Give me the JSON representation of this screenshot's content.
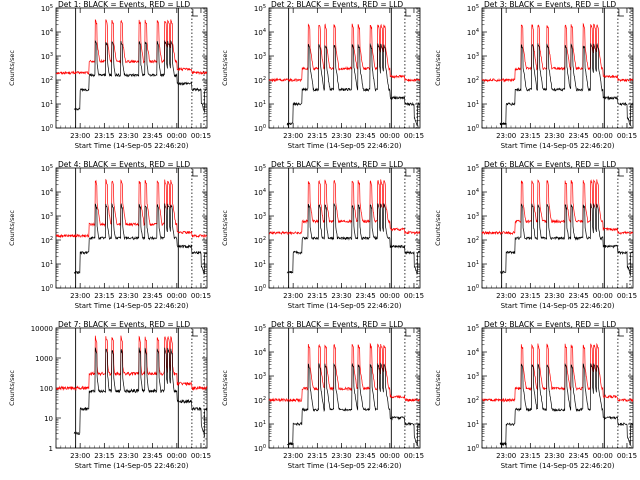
{
  "figure": {
    "xtick_labels": [
      "23:00",
      "23:15",
      "23:30",
      "23:45",
      "00:00",
      "00:15"
    ],
    "xlabel": "Start Time (14-Sep-05 22:46:20)",
    "ylabel": "Counts/sec",
    "colors": {
      "events": "#000000",
      "lld": "#ff0000",
      "axes": "#000000"
    }
  },
  "chart_data": [
    {
      "type": "line",
      "title": "Det 1: BLACK = Events, RED = LLD",
      "xlabel": "Start Time (14-Sep-05 22:46:20)",
      "ylabel": "Counts/sec",
      "yscale": "log",
      "ylim": [
        1,
        100000
      ],
      "ytick_labels": [
        "10^0",
        "10^1",
        "10^2",
        "10^3",
        "10^4",
        "10^5"
      ],
      "series": [
        {
          "name": "Events",
          "color": "#000000",
          "values_desc": "background ~40 counts/sec, spikes ~4000"
        },
        {
          "name": "LLD",
          "color": "#ff0000",
          "values_desc": "background ~200 counts/sec, spikes ~30000"
        }
      ]
    },
    {
      "type": "line",
      "title": "Det 2: BLACK = Events, RED = LLD",
      "xlabel": "Start Time (14-Sep-05 22:46:20)",
      "ylabel": "Counts/sec",
      "yscale": "log",
      "ylim": [
        1,
        100000
      ],
      "ytick_labels": [
        "10^0",
        "10^1",
        "10^2",
        "10^3",
        "10^4",
        "10^5"
      ],
      "series": [
        {
          "name": "Events",
          "color": "#000000",
          "values_desc": "background ~10 counts/sec, spikes ~3000"
        },
        {
          "name": "LLD",
          "color": "#ff0000",
          "values_desc": "background ~100 counts/sec, spikes ~20000"
        }
      ]
    },
    {
      "type": "line",
      "title": "Det 3: BLACK = Events, RED = LLD",
      "xlabel": "Start Time (14-Sep-05 22:46:20)",
      "ylabel": "Counts/sec",
      "yscale": "log",
      "ylim": [
        1,
        100000
      ],
      "ytick_labels": [
        "10^0",
        "10^1",
        "10^2",
        "10^3",
        "10^4",
        "10^5"
      ],
      "series": [
        {
          "name": "Events",
          "color": "#000000",
          "values_desc": "background ~10 counts/sec, spikes ~3000"
        },
        {
          "name": "LLD",
          "color": "#ff0000",
          "values_desc": "background ~100 counts/sec, spikes ~20000"
        }
      ]
    },
    {
      "type": "line",
      "title": "Det 4: BLACK = Events, RED = LLD",
      "xlabel": "Start Time (14-Sep-05 22:46:20)",
      "ylabel": "Counts/sec",
      "yscale": "log",
      "ylim": [
        1,
        100000
      ],
      "ytick_labels": [
        "10^0",
        "10^1",
        "10^2",
        "10^3",
        "10^4",
        "10^5"
      ],
      "series": [
        {
          "name": "Events",
          "color": "#000000",
          "values_desc": "background ~30 counts/sec, spikes ~3000"
        },
        {
          "name": "LLD",
          "color": "#ff0000",
          "values_desc": "background ~150 counts/sec, spikes ~30000"
        }
      ]
    },
    {
      "type": "line",
      "title": "Det 5: BLACK = Events, RED = LLD",
      "xlabel": "Start Time (14-Sep-05 22:46:20)",
      "ylabel": "Counts/sec",
      "yscale": "log",
      "ylim": [
        1,
        100000
      ],
      "ytick_labels": [
        "10^0",
        "10^1",
        "10^2",
        "10^3",
        "10^4",
        "10^5"
      ],
      "series": [
        {
          "name": "Events",
          "color": "#000000",
          "values_desc": "background ~30 counts/sec, spikes ~3000"
        },
        {
          "name": "LLD",
          "color": "#ff0000",
          "values_desc": "background ~200 counts/sec, spikes ~30000"
        }
      ]
    },
    {
      "type": "line",
      "title": "Det 6: BLACK = Events, RED = LLD",
      "xlabel": "Start Time (14-Sep-05 22:46:20)",
      "ylabel": "Counts/sec",
      "yscale": "log",
      "ylim": [
        1,
        100000
      ],
      "ytick_labels": [
        "10^0",
        "10^1",
        "10^2",
        "10^3",
        "10^4",
        "10^5"
      ],
      "series": [
        {
          "name": "Events",
          "color": "#000000",
          "values_desc": "background ~30 counts/sec, spikes ~3000"
        },
        {
          "name": "LLD",
          "color": "#ff0000",
          "values_desc": "background ~200 counts/sec, spikes ~30000"
        }
      ]
    },
    {
      "type": "line",
      "title": "Det 7: BLACK = Events, RED = LLD",
      "xlabel": "Start Time (14-Sep-05 22:46:20)",
      "ylabel": "Counts/sec",
      "yscale": "log",
      "ylim": [
        1,
        10000
      ],
      "ytick_labels": [
        "1",
        "10",
        "100",
        "1000",
        "10000"
      ],
      "series": [
        {
          "name": "Events",
          "color": "#000000",
          "values_desc": "background ~20 counts/sec, spikes ~2000"
        },
        {
          "name": "LLD",
          "color": "#ff0000",
          "values_desc": "background ~100 counts/sec, spikes ~5000"
        }
      ]
    },
    {
      "type": "line",
      "title": "Det 8: BLACK = Events, RED = LLD",
      "xlabel": "Start Time (14-Sep-05 22:46:20)",
      "ylabel": "Counts/sec",
      "yscale": "log",
      "ylim": [
        1,
        100000
      ],
      "ytick_labels": [
        "10^0",
        "10^1",
        "10^2",
        "10^3",
        "10^4",
        "10^5"
      ],
      "series": [
        {
          "name": "Events",
          "color": "#000000",
          "values_desc": "background ~10 counts/sec, spikes ~3000"
        },
        {
          "name": "LLD",
          "color": "#ff0000",
          "values_desc": "background ~100 counts/sec, spikes ~20000"
        }
      ]
    },
    {
      "type": "line",
      "title": "Det 9: BLACK = Events, RED = LLD",
      "xlabel": "Start Time (14-Sep-05 22:46:20)",
      "ylabel": "Counts/sec",
      "yscale": "log",
      "ylim": [
        1,
        100000
      ],
      "ytick_labels": [
        "10^0",
        "10^1",
        "10^2",
        "10^3",
        "10^4",
        "10^5"
      ],
      "series": [
        {
          "name": "Events",
          "color": "#000000",
          "values_desc": "background ~10 counts/sec, spikes ~3000"
        },
        {
          "name": "LLD",
          "color": "#ff0000",
          "values_desc": "background ~100 counts/sec, spikes ~20000"
        }
      ]
    }
  ]
}
